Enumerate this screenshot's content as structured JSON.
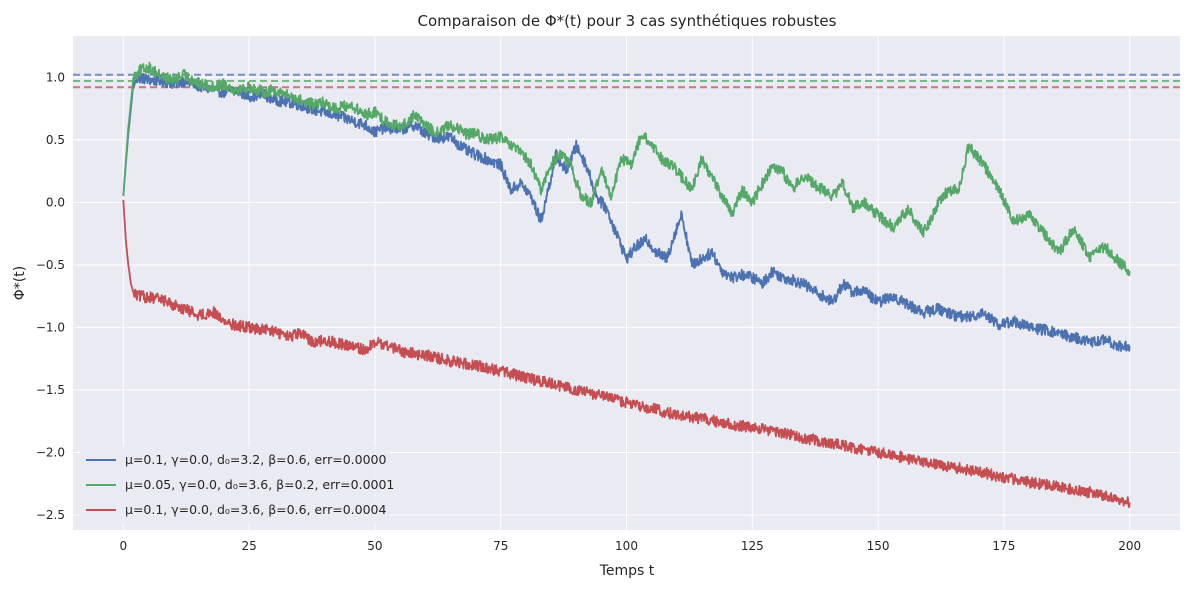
{
  "chart_data": {
    "type": "line",
    "title": "Comparaison de Φ*(t) pour 3 cas synthétiques robustes",
    "xlabel": "Temps t",
    "ylabel": "Φ*(t)",
    "xlim": [
      -10,
      210
    ],
    "ylim": [
      -2.62,
      1.33
    ],
    "xticks": [
      0,
      25,
      50,
      75,
      100,
      125,
      150,
      175,
      200
    ],
    "yticks": [
      -2.5,
      -2.0,
      -1.5,
      -1.0,
      -0.5,
      0.0,
      0.5,
      1.0
    ],
    "xtick_labels": [
      "0",
      "25",
      "50",
      "75",
      "100",
      "125",
      "150",
      "175",
      "200"
    ],
    "ytick_labels": [
      "−2.5",
      "−2.0",
      "−1.5",
      "−1.0",
      "−0.5",
      "0.0",
      "0.5",
      "1.0"
    ],
    "grid": true,
    "legend_position": "lower-left",
    "background": "#eaeaf2",
    "series": [
      {
        "name": "μ=0.1, γ=0.0, d₀=3.2, β=0.6, err=0.0000",
        "color": "#4c72b0",
        "reference_level": 1.02,
        "x": [
          0,
          1,
          2,
          3,
          5,
          8,
          10,
          12,
          15,
          18,
          20,
          22,
          25,
          28,
          30,
          33,
          35,
          38,
          40,
          42,
          45,
          48,
          50,
          52,
          55,
          58,
          60,
          62,
          65,
          68,
          70,
          72,
          75,
          77,
          79,
          81,
          83,
          85,
          86,
          88,
          90,
          92,
          94,
          96,
          98,
          100,
          102,
          104,
          106,
          108,
          110,
          111,
          113,
          115,
          117,
          119,
          121,
          123,
          125,
          127,
          129,
          131,
          133,
          135,
          137,
          139,
          141,
          143,
          145,
          147,
          150,
          153,
          156,
          159,
          162,
          165,
          168,
          171,
          174,
          177,
          180,
          183,
          186,
          189,
          192,
          195,
          198,
          200
        ],
        "y": [
          0.05,
          0.55,
          0.95,
          1.0,
          0.98,
          0.97,
          0.95,
          0.97,
          0.93,
          0.9,
          0.88,
          0.9,
          0.85,
          0.86,
          0.82,
          0.8,
          0.78,
          0.74,
          0.72,
          0.7,
          0.66,
          0.62,
          0.56,
          0.6,
          0.58,
          0.62,
          0.55,
          0.52,
          0.52,
          0.42,
          0.38,
          0.35,
          0.3,
          0.1,
          0.15,
          0.05,
          -0.15,
          0.2,
          0.38,
          0.25,
          0.45,
          0.3,
          0.05,
          -0.05,
          -0.25,
          -0.45,
          -0.35,
          -0.3,
          -0.4,
          -0.45,
          -0.2,
          -0.1,
          -0.5,
          -0.45,
          -0.4,
          -0.55,
          -0.6,
          -0.58,
          -0.6,
          -0.65,
          -0.55,
          -0.6,
          -0.62,
          -0.65,
          -0.7,
          -0.75,
          -0.8,
          -0.65,
          -0.72,
          -0.7,
          -0.8,
          -0.75,
          -0.82,
          -0.88,
          -0.85,
          -0.9,
          -0.92,
          -0.88,
          -0.98,
          -0.95,
          -1.0,
          -1.02,
          -1.05,
          -1.08,
          -1.12,
          -1.1,
          -1.15,
          -1.15
        ]
      },
      {
        "name": "μ=0.05, γ=0.0, d₀=3.6, β=0.2, err=0.0001",
        "color": "#55a868",
        "reference_level": 0.97,
        "x": [
          0,
          1,
          2,
          3,
          5,
          8,
          10,
          12,
          15,
          18,
          20,
          22,
          25,
          28,
          30,
          33,
          35,
          38,
          40,
          42,
          45,
          48,
          50,
          52,
          55,
          58,
          60,
          62,
          65,
          68,
          70,
          72,
          75,
          77,
          79,
          81,
          83,
          85,
          87,
          89,
          91,
          93,
          95,
          97,
          99,
          101,
          103,
          105,
          107,
          109,
          111,
          113,
          115,
          117,
          119,
          121,
          123,
          125,
          127,
          129,
          131,
          133,
          135,
          137,
          139,
          141,
          143,
          145,
          147,
          150,
          153,
          156,
          159,
          162,
          164,
          166,
          168,
          171,
          174,
          177,
          180,
          183,
          186,
          189,
          192,
          195,
          198,
          200
        ],
        "y": [
          0.05,
          0.6,
          1.0,
          1.05,
          1.08,
          1.0,
          0.98,
          1.02,
          0.95,
          0.92,
          0.95,
          0.9,
          0.92,
          0.88,
          0.9,
          0.85,
          0.82,
          0.78,
          0.8,
          0.75,
          0.78,
          0.7,
          0.72,
          0.65,
          0.6,
          0.7,
          0.62,
          0.55,
          0.62,
          0.55,
          0.55,
          0.5,
          0.52,
          0.45,
          0.4,
          0.3,
          0.1,
          0.3,
          0.4,
          0.28,
          0.05,
          0.0,
          0.25,
          0.05,
          0.35,
          0.3,
          0.55,
          0.45,
          0.35,
          0.3,
          0.2,
          0.1,
          0.35,
          0.2,
          0.05,
          -0.1,
          0.1,
          0.0,
          0.15,
          0.3,
          0.25,
          0.1,
          0.22,
          0.15,
          0.1,
          0.05,
          0.15,
          -0.05,
          0.0,
          -0.1,
          -0.2,
          -0.05,
          -0.25,
          0.0,
          0.1,
          0.1,
          0.45,
          0.3,
          0.1,
          -0.15,
          -0.1,
          -0.25,
          -0.4,
          -0.2,
          -0.45,
          -0.35,
          -0.48,
          -0.55
        ]
      },
      {
        "name": "μ=0.1, γ=0.0, d₀=3.6, β=0.6, err=0.0004",
        "color": "#c44e52",
        "reference_level": 0.92,
        "x": [
          0,
          0.5,
          1,
          1.5,
          2,
          3,
          5,
          8,
          10,
          12,
          15,
          18,
          20,
          22,
          25,
          28,
          30,
          33,
          35,
          38,
          40,
          42,
          45,
          48,
          50,
          53,
          56,
          60,
          65,
          70,
          75,
          80,
          85,
          90,
          95,
          100,
          105,
          110,
          115,
          120,
          125,
          130,
          135,
          140,
          145,
          150,
          155,
          160,
          165,
          170,
          175,
          180,
          185,
          190,
          195,
          200
        ],
        "y": [
          0.02,
          -0.3,
          -0.5,
          -0.65,
          -0.72,
          -0.75,
          -0.76,
          -0.78,
          -0.82,
          -0.85,
          -0.9,
          -0.88,
          -0.95,
          -0.98,
          -1.0,
          -1.02,
          -1.03,
          -1.08,
          -1.05,
          -1.12,
          -1.1,
          -1.12,
          -1.15,
          -1.18,
          -1.12,
          -1.15,
          -1.2,
          -1.22,
          -1.27,
          -1.3,
          -1.35,
          -1.4,
          -1.45,
          -1.5,
          -1.55,
          -1.6,
          -1.65,
          -1.7,
          -1.73,
          -1.77,
          -1.8,
          -1.84,
          -1.88,
          -1.92,
          -1.96,
          -2.0,
          -2.04,
          -2.08,
          -2.12,
          -2.15,
          -2.2,
          -2.24,
          -2.27,
          -2.3,
          -2.35,
          -2.4
        ]
      }
    ]
  }
}
